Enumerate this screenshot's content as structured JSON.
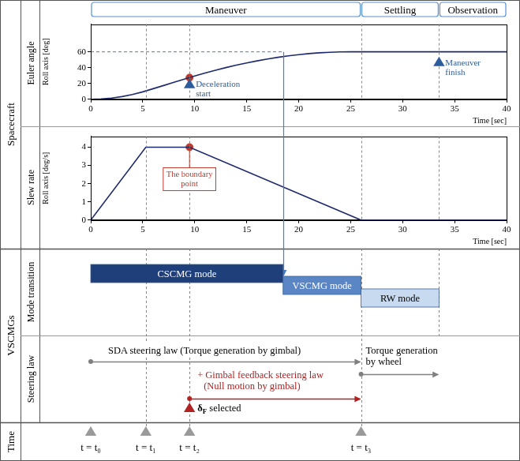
{
  "phases": [
    {
      "label": "Maneuver",
      "start": 0,
      "end": 26
    },
    {
      "label": "Settling",
      "start": 26,
      "end": 33.5
    },
    {
      "label": "Observation",
      "start": 33.5,
      "end": 40
    }
  ],
  "groups": [
    {
      "label": "Spacecraft"
    },
    {
      "label": "VSCMGs"
    },
    {
      "label": "Time"
    }
  ],
  "chart_data": [
    {
      "type": "line",
      "row_label": "Euler angle",
      "y_label": "Roll axis [deg]",
      "x_label": "Time [sec]",
      "xlim": [
        0,
        40
      ],
      "xticks": [
        0,
        5,
        10,
        15,
        20,
        25,
        30,
        35,
        40
      ],
      "ylim": [
        0,
        95
      ],
      "yticks": [
        0,
        20,
        40,
        60
      ],
      "grid": false,
      "x": [
        0,
        1,
        2,
        3,
        4,
        5,
        6,
        7,
        8,
        9,
        10,
        11,
        12,
        13,
        14,
        15,
        16,
        17,
        18,
        19,
        20,
        21,
        22,
        23,
        24,
        25,
        26,
        30,
        35,
        40
      ],
      "series": [
        {
          "color": "#1f2a6e",
          "values": [
            0,
            0.4,
            1.5,
            3.4,
            6.0,
            9.4,
            13.4,
            17.4,
            21.4,
            25.4,
            29.4,
            33.2,
            36.8,
            40.1,
            43.2,
            46.0,
            48.6,
            51.0,
            53.1,
            54.9,
            56.5,
            57.8,
            58.8,
            59.5,
            59.9,
            60,
            60,
            60,
            60,
            60
          ]
        }
      ],
      "reference": {
        "x": [
          0,
          18.5
        ],
        "values": [
          60,
          60
        ],
        "color": "#4a7cc4",
        "line_style": "dashed"
      },
      "markers": [
        {
          "x": 9.5,
          "y": 27.4,
          "color": "#c0392b"
        }
      ],
      "annotations": [
        {
          "text": "Deceleration start",
          "x": 9.5,
          "color": "#2e5d9e"
        },
        {
          "text": "Maneuver finish",
          "x": 33.5,
          "color": "#2e5d9e"
        }
      ]
    },
    {
      "type": "line",
      "row_label": "Slew rate",
      "y_label": "Roll axis [deg/s]",
      "x_label": "Time [sec]",
      "xlim": [
        0,
        40
      ],
      "xticks": [
        0,
        5,
        10,
        15,
        20,
        25,
        30,
        35,
        40
      ],
      "ylim": [
        0,
        4.6
      ],
      "yticks": [
        0,
        1,
        2,
        3,
        4
      ],
      "grid": false,
      "x": [
        0,
        5.3,
        9.5,
        26,
        40
      ],
      "series": [
        {
          "color": "#1f2a6e",
          "values": [
            0,
            4,
            4,
            0,
            0
          ]
        }
      ],
      "markers": [
        {
          "x": 9.5,
          "y": 4,
          "color": "#c0392b"
        }
      ],
      "annotations": [
        {
          "text": "The boundary point",
          "x": 9.5,
          "color": "#c0392b"
        }
      ]
    }
  ],
  "modes": {
    "row_label": "Mode transition",
    "items": [
      {
        "label": "CSCMG mode",
        "start": 0,
        "end": 18.5,
        "color": "#1f3f7a"
      },
      {
        "label": "VSCMG mode",
        "start": 18.5,
        "end": 26,
        "color": "#5b86c5"
      },
      {
        "label": "RW mode",
        "start": 26,
        "end": 33.5,
        "color": "#c8daf0"
      }
    ]
  },
  "steering": {
    "row_label": "Steering law",
    "laws": [
      {
        "text": "SDA steering law (Torque generation by gimbal)",
        "start": 0,
        "end": 26,
        "color": "#808080"
      },
      {
        "text": "+ Gimbal feedback steering law (Null motion by gimbal)",
        "start": 9.5,
        "end": 26,
        "color": "#b22222"
      },
      {
        "text": "Torque generation by wheel",
        "start": 26,
        "end": 33.5,
        "color": "#808080"
      }
    ],
    "selection": {
      "symbol": "δ",
      "subscript": "F",
      "text": "selected",
      "x": 9.5,
      "color": "#b22222"
    }
  },
  "time_markers": [
    {
      "label": "t = t₀",
      "x": 0
    },
    {
      "label": "t = t₁",
      "x": 5.3
    },
    {
      "label": "t = t₂",
      "x": 9.5
    },
    {
      "label": "t = t₃",
      "x": 26
    }
  ]
}
